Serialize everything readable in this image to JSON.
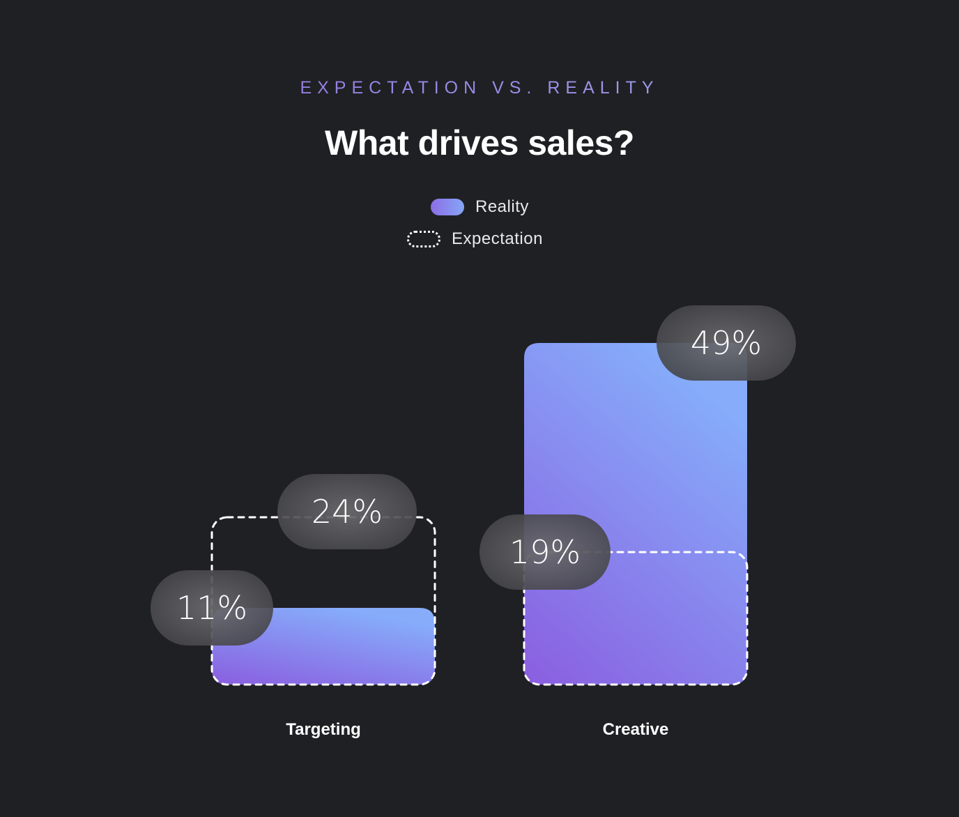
{
  "header": {
    "subtitle": "EXPECTATION VS. REALITY",
    "title": "What drives sales?"
  },
  "legend": {
    "reality_label": "Reality",
    "expectation_label": "Expectation"
  },
  "colors": {
    "background": "#1f2024",
    "bar_bottom": "#8a5ee0",
    "bar_top": "#86acfa",
    "pill": "#48484c"
  },
  "chart_data": {
    "type": "bar",
    "title": "What drives sales?",
    "subtitle": "EXPECTATION VS. REALITY",
    "categories": [
      "Targeting",
      "Creative"
    ],
    "series": [
      {
        "name": "Reality",
        "values": [
          11,
          49
        ],
        "labels": [
          "11%",
          "49%"
        ]
      },
      {
        "name": "Expectation",
        "values": [
          24,
          19
        ],
        "labels": [
          "24%",
          "19%"
        ]
      }
    ],
    "unit": "%",
    "ylim": [
      0,
      49
    ],
    "grid": false,
    "legend_position": "top-center"
  }
}
